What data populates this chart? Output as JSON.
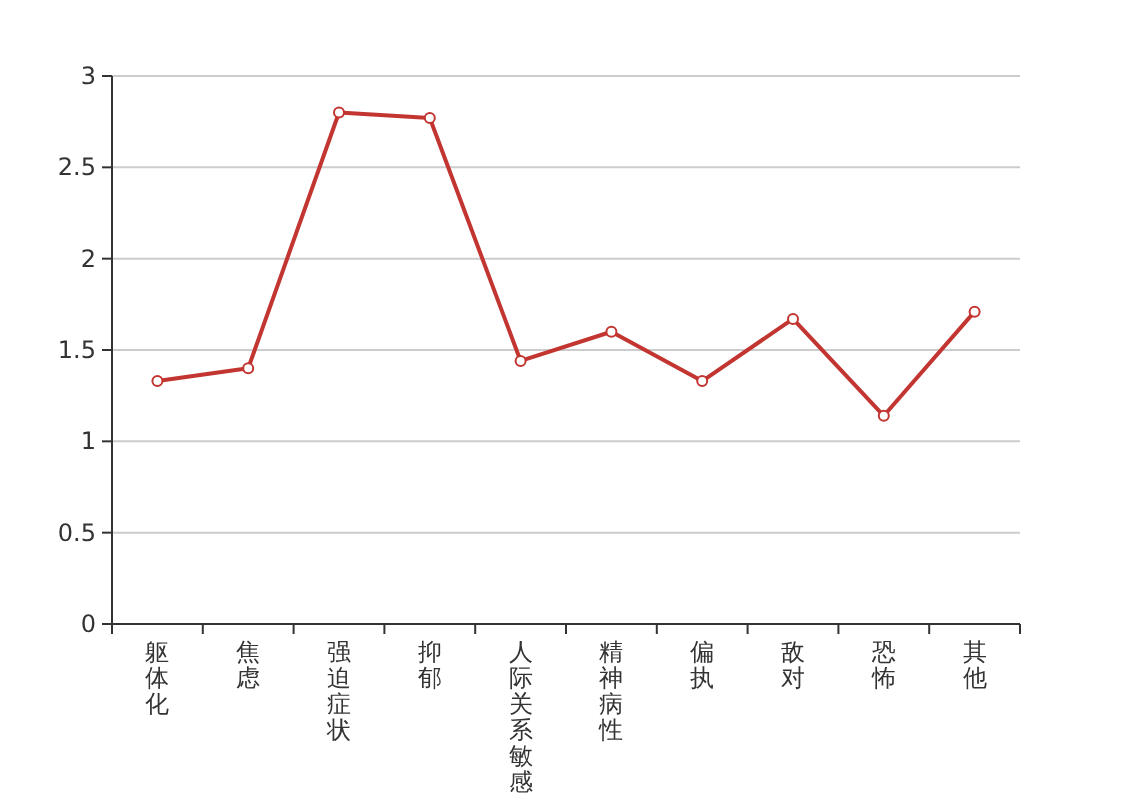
{
  "chart_data": {
    "type": "line",
    "categories": [
      "躯体化",
      "焦虑",
      "强迫症状",
      "抑郁",
      "人际关系敏感",
      "精神病性",
      "偏执",
      "敌对",
      "恐怖",
      "其他"
    ],
    "series": [
      {
        "color": "#c23531",
        "values": [
          1.33,
          1.4,
          2.8,
          2.77,
          1.44,
          1.6,
          1.33,
          1.67,
          1.14,
          1.71
        ]
      }
    ],
    "ylim": [
      0,
      3
    ],
    "yticks": [
      0,
      0.5,
      1,
      1.5,
      2,
      2.5,
      3
    ],
    "grid": "y",
    "marker": "circle"
  }
}
